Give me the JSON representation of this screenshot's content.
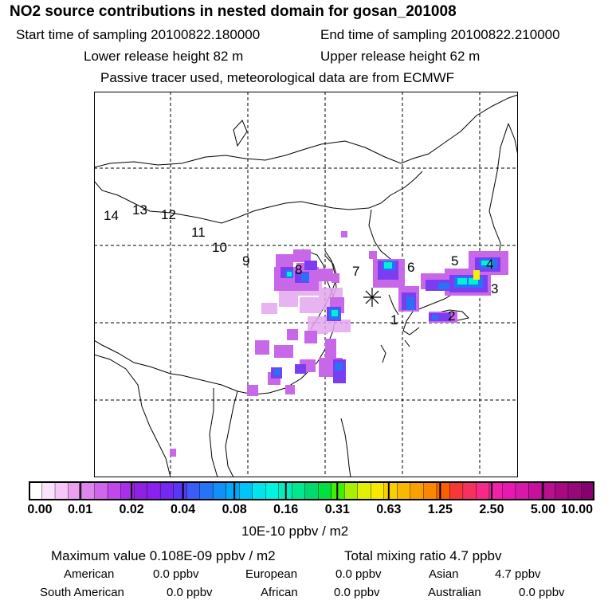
{
  "header": {
    "title": "NO2 source contributions in nested domain for gosan_201008",
    "start_time": "Start time of sampling 20100822.180000",
    "end_time": "End time of sampling 20100822.210000",
    "lower_height": "Lower release height   82 m",
    "upper_height": "Upper release height   62 m",
    "tracer_note": "Passive tracer used, meteorological data are from ECMWF"
  },
  "map": {
    "trajectory_labels": [
      "1",
      "2",
      "3",
      "4",
      "5",
      "6",
      "7",
      "8",
      "9",
      "10",
      "11",
      "12",
      "13",
      "14"
    ],
    "receptor_marker": "receptor-star-icon"
  },
  "colorbar": {
    "ticks": [
      "0.00",
      "0.01",
      "0.02",
      "0.04",
      "0.08",
      "0.16",
      "0.31",
      "0.63",
      "1.25",
      "2.50",
      "5.00",
      "10.00"
    ],
    "unit": "10E-10 ppbv / m2",
    "colors": [
      "#ffffff",
      "#fbe3fb",
      "#f6c6f6",
      "#eba0f0",
      "#dc86ee",
      "#cf66ec",
      "#c048ea",
      "#a830e8",
      "#9020e4",
      "#8c20f0",
      "#7428f0",
      "#5838f4",
      "#3c5cf8",
      "#2474f8",
      "#1090f8",
      "#00aaf8",
      "#00c4f8",
      "#00e4ec",
      "#00f4e0",
      "#00f0bc",
      "#00e890",
      "#00d870",
      "#00e040",
      "#40f000",
      "#a8f000",
      "#e0f000",
      "#f8e800",
      "#f8d000",
      "#f8b800",
      "#f8a000",
      "#f88800",
      "#f86000",
      "#f83838",
      "#f83060",
      "#f82888",
      "#f020a8",
      "#e818b0",
      "#d818a8",
      "#c8109c",
      "#b81090",
      "#a80880",
      "#980878",
      "#880070"
    ]
  },
  "footer": {
    "max_value": "Maximum value  0.108E-09 ppbv / m2",
    "total_mixing": "Total mixing ratio        4.7 ppbv",
    "american_label": "American",
    "american_value": "0.0 ppbv",
    "european_label": "European",
    "european_value": "0.0 ppbv",
    "asian_label": "Asian",
    "asian_value": "4.7 ppbv",
    "south_american_label": "South American",
    "south_american_value": "0.0 ppbv",
    "african_label": "African",
    "african_value": "0.0 ppbv",
    "australian_label": "Australian",
    "australian_value": "0.0 ppbv"
  }
}
